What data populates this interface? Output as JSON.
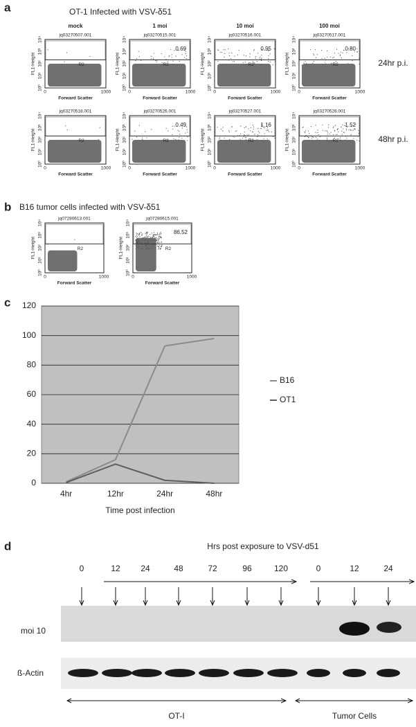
{
  "panel_a": {
    "letter": "a",
    "title": "OT-1 Infected with VSV-δ51",
    "columns": [
      "mock",
      "1 moi",
      "10 moi",
      "100 moi"
    ],
    "rows": [
      "24hr p.i.",
      "48hr p.i."
    ],
    "plots": [
      [
        {
          "id": "jq03270507.001",
          "gate": "R2",
          "percent": null
        },
        {
          "id": "jq03270515.001",
          "gate": "R2",
          "percent": "0.69"
        },
        {
          "id": "jq03270516.001",
          "gate": "R2",
          "percent": "0.95"
        },
        {
          "id": "jq03270517.001",
          "gate": "R2",
          "percent": "0.80"
        }
      ],
      [
        {
          "id": "jq03270518.001",
          "gate": "R2",
          "percent": null
        },
        {
          "id": "jq03270526.001",
          "gate": "R2",
          "percent": "0.49"
        },
        {
          "id": "jq03270527.001",
          "gate": "R2",
          "percent": "1.16"
        },
        {
          "id": "jq03270528.001",
          "gate": "R2",
          "percent": "1.52"
        }
      ]
    ],
    "x_label": "Forward Scatter",
    "y_label": "FL1-Height",
    "x_ticks": [
      "0",
      "1000"
    ],
    "y_ticks": [
      "10⁰",
      "10¹",
      "10²",
      "10³",
      "10⁴"
    ]
  },
  "panel_b": {
    "letter": "b",
    "title": "B16 tumor cells infected with VSV-δ51",
    "plots": [
      {
        "id": "jq07280613.001",
        "gate": "R2",
        "percent": null
      },
      {
        "id": "jq07280615.001",
        "gate": "R2",
        "percent": "86.52"
      }
    ]
  },
  "chart_data": {
    "type": "line",
    "letter": "c",
    "x_label": "Time post infection",
    "categories": [
      "4hr",
      "12hr",
      "24hr",
      "48hr"
    ],
    "series": [
      {
        "name": "B16",
        "color": "#8a8a8a",
        "values": [
          1,
          16,
          93,
          98
        ]
      },
      {
        "name": "OT1",
        "color": "#5e5e5e",
        "values": [
          0.5,
          13,
          2,
          0
        ]
      }
    ],
    "ylim": [
      0,
      120
    ],
    "yticks": [
      0,
      20,
      40,
      60,
      80,
      100,
      120
    ],
    "grid": true,
    "background": "#c0c0c0"
  },
  "panel_d": {
    "letter": "d",
    "title": "Hrs post exposure to VSV-d51",
    "times": [
      "0",
      "12",
      "24",
      "48",
      "72",
      "96",
      "120",
      "0",
      "12",
      "24"
    ],
    "rows": [
      "moi 10",
      "ß-Actin"
    ],
    "groups": [
      "OT-I",
      "Tumor Cells"
    ]
  }
}
